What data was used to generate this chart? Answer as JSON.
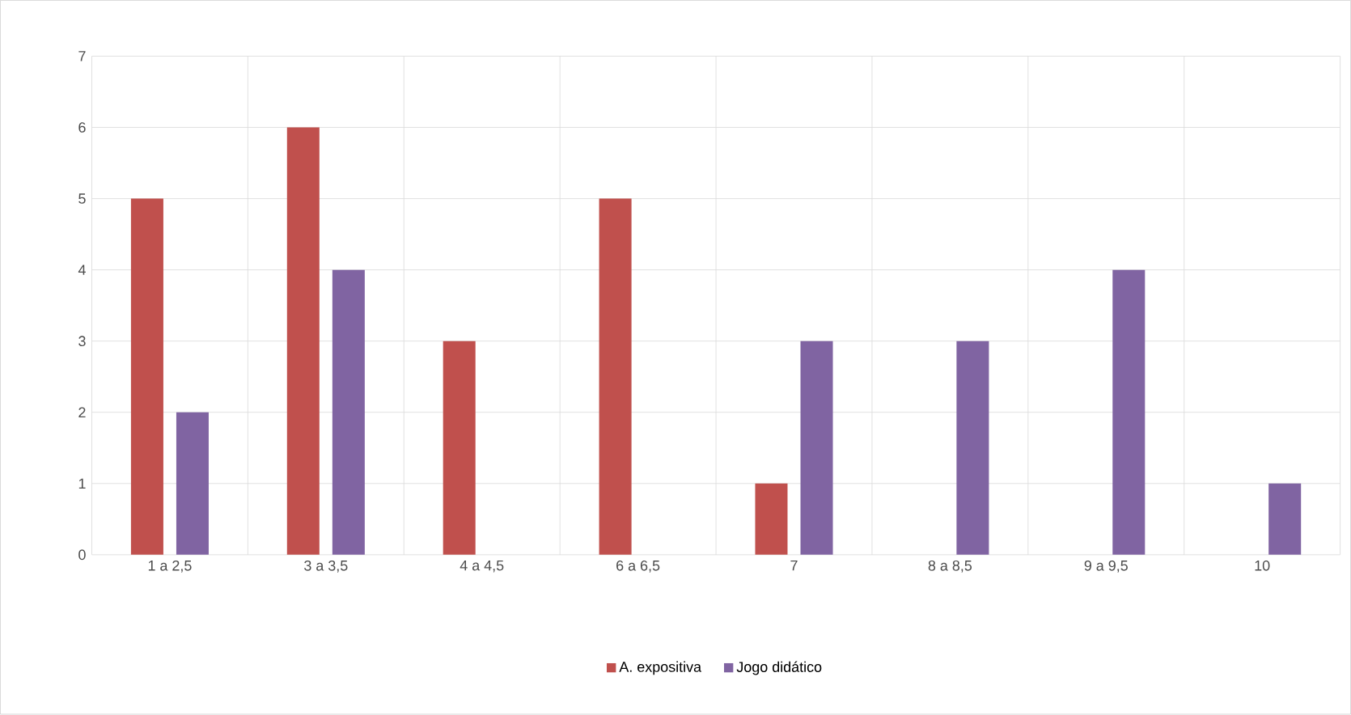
{
  "chart_data": {
    "type": "bar",
    "categories": [
      "1 a 2,5",
      "3 a 3,5",
      "4 a 4,5",
      "6 a 6,5",
      "7",
      "8 a 8,5",
      "9 a 9,5",
      "10"
    ],
    "series": [
      {
        "name": "A. expositiva",
        "color": "#c0504d",
        "values": [
          5,
          6,
          3,
          5,
          1,
          0,
          0,
          0
        ]
      },
      {
        "name": "Jogo didático",
        "color": "#8064a2",
        "values": [
          2,
          4,
          0,
          0,
          3,
          3,
          4,
          1
        ]
      }
    ],
    "ylim": [
      0,
      7
    ],
    "yticks": [
      0,
      1,
      2,
      3,
      4,
      5,
      6,
      7
    ],
    "grid": true,
    "legend": "bottom"
  }
}
